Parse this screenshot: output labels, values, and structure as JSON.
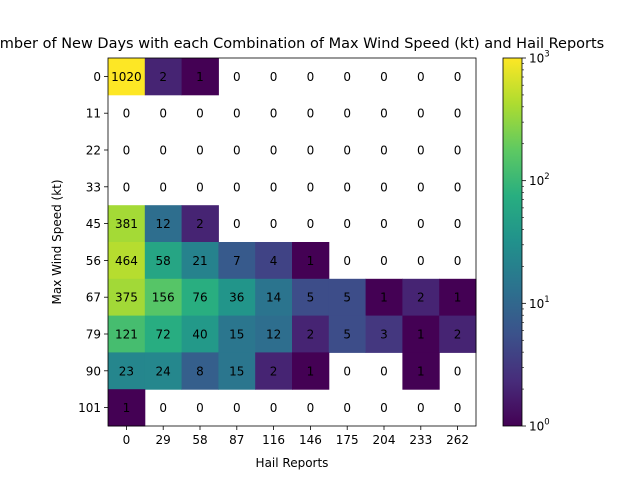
{
  "chart_data": {
    "type": "heatmap",
    "title": "Number of New Days with each Combination of Max Wind Speed (kt) and Hail Reports",
    "xlabel": "Hail Reports",
    "ylabel": "Max Wind Speed (kt)",
    "x_categories": [
      "0",
      "29",
      "58",
      "87",
      "116",
      "146",
      "175",
      "204",
      "233",
      "262"
    ],
    "y_categories": [
      "0",
      "11",
      "22",
      "33",
      "45",
      "56",
      "67",
      "79",
      "90",
      "101"
    ],
    "values": [
      [
        1020,
        2,
        1,
        0,
        0,
        0,
        0,
        0,
        0,
        0
      ],
      [
        0,
        0,
        0,
        0,
        0,
        0,
        0,
        0,
        0,
        0
      ],
      [
        0,
        0,
        0,
        0,
        0,
        0,
        0,
        0,
        0,
        0
      ],
      [
        0,
        0,
        0,
        0,
        0,
        0,
        0,
        0,
        0,
        0
      ],
      [
        381,
        12,
        2,
        0,
        0,
        0,
        0,
        0,
        0,
        0
      ],
      [
        464,
        58,
        21,
        7,
        4,
        1,
        0,
        0,
        0,
        0
      ],
      [
        375,
        156,
        76,
        36,
        14,
        5,
        5,
        1,
        2,
        1
      ],
      [
        121,
        72,
        40,
        15,
        12,
        2,
        5,
        3,
        1,
        2
      ],
      [
        23,
        24,
        8,
        15,
        2,
        1,
        0,
        0,
        1,
        0
      ],
      [
        1,
        0,
        0,
        0,
        0,
        0,
        0,
        0,
        0,
        0
      ]
    ],
    "color_scale": "log",
    "colormap": "viridis",
    "zero_cells": "blank (white)",
    "colorbar": {
      "range": [
        1,
        1000
      ],
      "ticks": [
        {
          "value": 1,
          "base": "10",
          "exp": "0"
        },
        {
          "value": 10,
          "base": "10",
          "exp": "1"
        },
        {
          "value": 100,
          "base": "10",
          "exp": "2"
        },
        {
          "value": 1000,
          "base": "10",
          "exp": "3"
        }
      ]
    },
    "grid": false
  }
}
